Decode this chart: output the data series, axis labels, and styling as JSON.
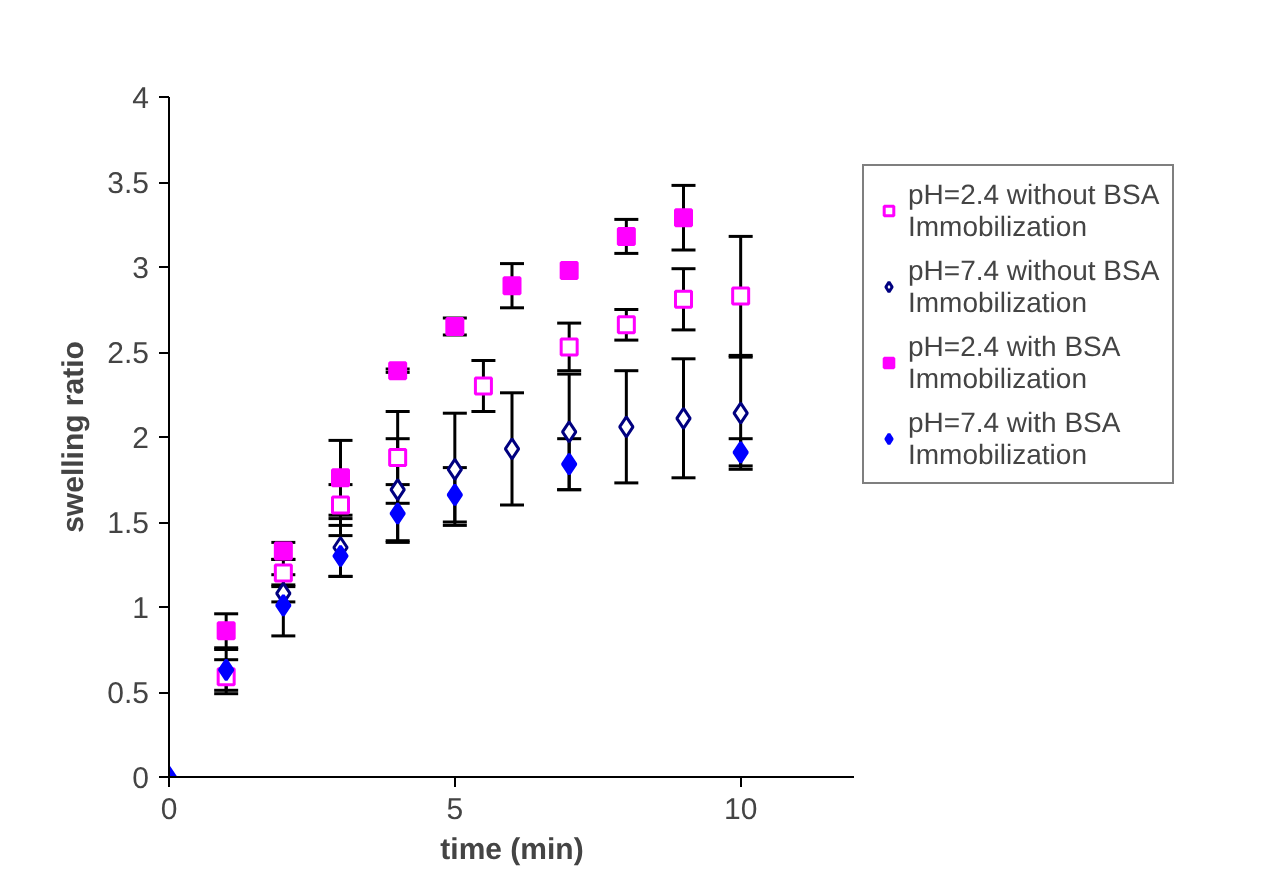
{
  "chart_data": {
    "type": "scatter",
    "xlabel": "time (min)",
    "ylabel": "swelling ratio",
    "xlim": [
      0,
      12
    ],
    "xticks": [
      0,
      5,
      10
    ],
    "ylim": [
      0,
      4
    ],
    "yticks": [
      0,
      0.5,
      1,
      1.5,
      2,
      2.5,
      3,
      3.5,
      4
    ],
    "grid": false,
    "legend": "right",
    "series": [
      {
        "name": "pH=2.4 without BSA Immobilization",
        "color": "#ff00ff",
        "marker": "square",
        "x": [
          1,
          2,
          3,
          4,
          5.5,
          7,
          8,
          9,
          10
        ],
        "values": [
          0.59,
          1.2,
          1.6,
          1.88,
          2.3,
          2.53,
          2.66,
          2.81,
          2.83
        ],
        "errors": [
          0.1,
          0.08,
          0.12,
          0.27,
          0.15,
          0.14,
          0.09,
          0.18,
          0.35
        ]
      },
      {
        "name": "pH=7.4 without BSA Immobilization",
        "color": "#000080",
        "marker": "diamond",
        "x": [
          2,
          3,
          4,
          5,
          6,
          7,
          8,
          9,
          10
        ],
        "values": [
          1.08,
          1.35,
          1.69,
          1.81,
          1.93,
          2.03,
          2.06,
          2.11,
          2.14
        ],
        "errors": [
          0.05,
          0.17,
          0.3,
          0.33,
          0.33,
          0.34,
          0.33,
          0.35,
          0.33
        ]
      },
      {
        "name": "pH=2.4 with BSA Immobilization",
        "color": "#ff00ff",
        "marker": "square",
        "x": [
          1,
          2,
          3,
          4,
          5,
          6,
          7,
          8,
          9
        ],
        "values": [
          0.86,
          1.33,
          1.76,
          2.39,
          2.65,
          2.89,
          2.98,
          3.18,
          3.29
        ],
        "errors": [
          0.1,
          0.05,
          0.22,
          0.01,
          0.05,
          0.13,
          null,
          0.1,
          0.19
        ]
      },
      {
        "name": "pH=7.4 with BSA Immobilization",
        "color": "#0000ff",
        "marker": "diamond",
        "x": [
          0,
          1,
          2,
          3,
          4,
          5,
          7,
          10
        ],
        "values": [
          0,
          0.63,
          1.01,
          1.3,
          1.55,
          1.66,
          1.84,
          1.91
        ],
        "errors": [
          null,
          0.12,
          0.18,
          0.12,
          0.17,
          0.16,
          0.15,
          0.08
        ]
      }
    ]
  }
}
